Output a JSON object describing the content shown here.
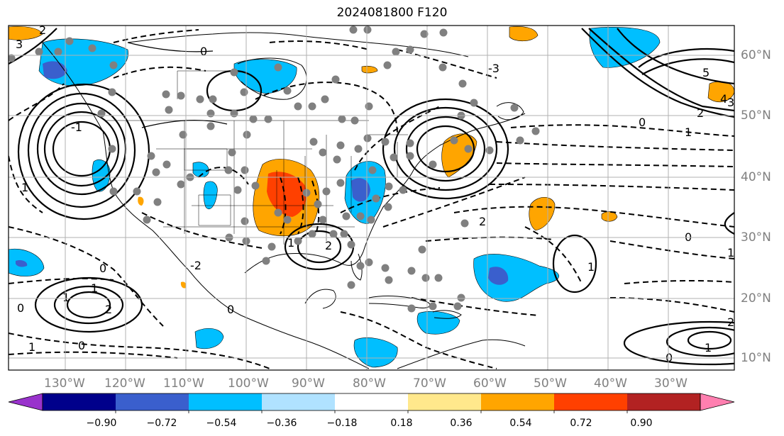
{
  "title": "2024081800 F120",
  "map": {
    "lon_ticks": [
      "130°W",
      "120°W",
      "110°W",
      "100°W",
      "90°W",
      "80°W",
      "70°W",
      "60°W",
      "50°W",
      "40°W",
      "30°W"
    ],
    "lat_ticks": [
      "60°N",
      "50°N",
      "40°N",
      "30°N",
      "20°N",
      "10°N"
    ],
    "grid_color": "#b0b0b0",
    "contour_labels": [
      "3",
      "2",
      "1",
      "0",
      "-1",
      "-2",
      "-3",
      "5",
      "4",
      "3",
      "2",
      "1",
      "0",
      "1",
      "0",
      "0",
      "1",
      "2",
      "1",
      "0",
      "2",
      "0",
      "1",
      "0",
      "1",
      "1",
      "2",
      "0",
      "1",
      "2"
    ]
  },
  "colorbar": {
    "ticks": [
      "−0.90",
      "−0.72",
      "−0.54",
      "−0.36",
      "−0.18",
      "0.18",
      "0.36",
      "0.54",
      "0.72",
      "0.90"
    ],
    "colors": [
      "#9932cc",
      "#00008b",
      "#3a5fcd",
      "#00bfff",
      "#b0e2ff",
      "#ffffff",
      "#ffe88c",
      "#ffa500",
      "#ff4000",
      "#b22222",
      "#ff7fb0"
    ]
  },
  "dot_color": "#808080"
}
